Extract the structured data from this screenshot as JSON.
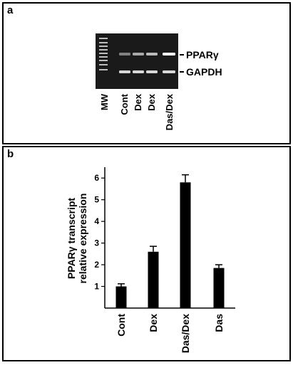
{
  "panel_a": {
    "letter": "a",
    "gel_lanes": [
      "MW",
      "Cont",
      "Dex",
      "Dex",
      "Das/Dex"
    ],
    "band_labels": [
      "PPARγ",
      "GAPDH"
    ],
    "pparg_band_intensity": [
      0,
      0.35,
      0.55,
      0.65,
      1.0
    ],
    "gapdh_band_intensity": [
      0,
      0.8,
      0.8,
      0.8,
      0.8
    ]
  },
  "panel_b": {
    "letter": "b"
  },
  "chart_data": {
    "type": "bar",
    "categories": [
      "Cont",
      "Dex",
      "Das/Dex",
      "Das"
    ],
    "values": [
      1.0,
      2.6,
      5.8,
      1.85
    ],
    "errors": [
      0.12,
      0.25,
      0.35,
      0.15
    ],
    "ylabel_line1": "PPARγ transcript",
    "ylabel_line2": "relative expression",
    "yticks": [
      1,
      2,
      3,
      4,
      5,
      6
    ],
    "ylim": [
      0,
      6.5
    ],
    "bar_color": "#000000",
    "grid": false,
    "legend": "none"
  }
}
